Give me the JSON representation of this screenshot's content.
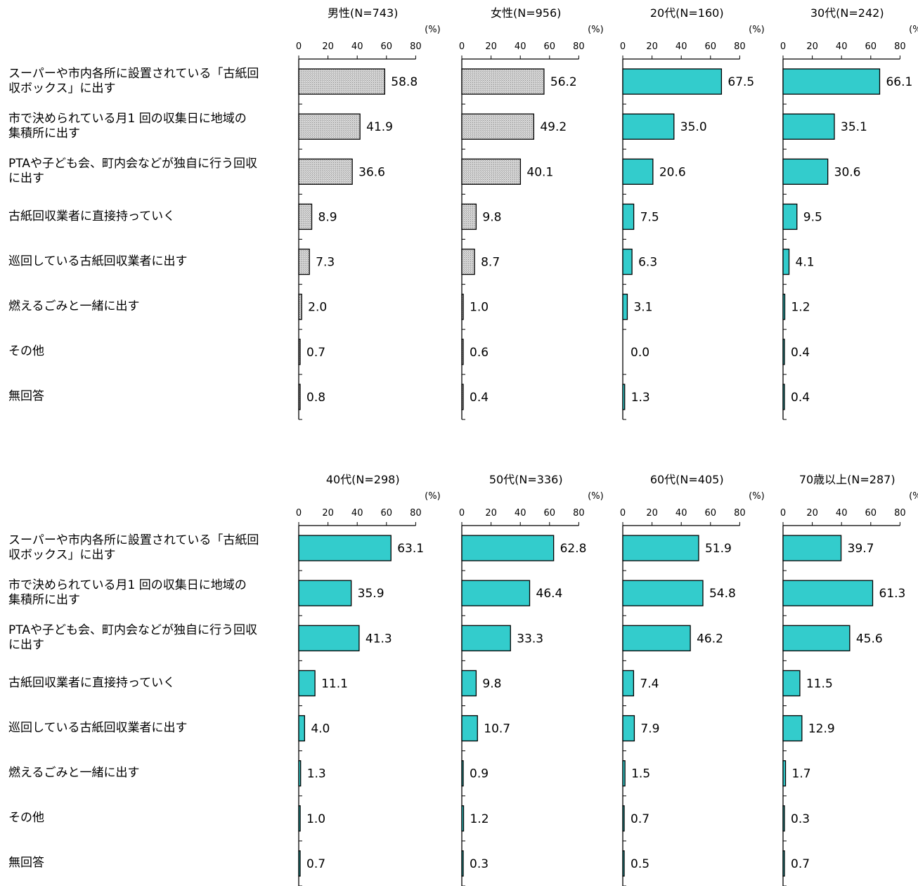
{
  "chart_data": {
    "type": "bar",
    "orientation": "horizontal",
    "unit": "(%)",
    "xlim": [
      0,
      80
    ],
    "ticks": [
      "0",
      "20",
      "40",
      "60",
      "80"
    ],
    "categories": [
      "スーパーや市内各所に設置されている「古紙回収ボックス」に出す",
      "市で決められている月1 回の収集日に地域の集積所に出す",
      "PTAや子ども会、町内会などが独自に行う回収に出す",
      "古紙回収業者に直接持っていく",
      "巡回している古紙回収業者に出す",
      "燃えるごみと一緒に出す",
      "その他",
      "無回答"
    ],
    "category_lines": [
      [
        "スーパーや市内各所に設置されている「古紙回",
        "収ボックス」に出す"
      ],
      [
        "市で決められている月1 回の収集日に地域の",
        "集積所に出す"
      ],
      [
        "PTAや子ども会、町内会などが独自に行う回収",
        "に出す"
      ],
      [
        "古紙回収業者に直接持っていく"
      ],
      [
        "巡回している古紙回収業者に出す"
      ],
      [
        "燃えるごみと一緒に出す"
      ],
      [
        "その他"
      ],
      [
        "無回答"
      ]
    ],
    "colors": {
      "gender": "#c8c8c8",
      "age": "#33cccc",
      "border": "#000000"
    },
    "panels": [
      {
        "title": "男性(N=743)",
        "style": "gender",
        "values": [
          58.8,
          41.9,
          36.6,
          8.9,
          7.3,
          2.0,
          0.7,
          0.8
        ],
        "labels": [
          "58.8",
          "41.9",
          "36.6",
          "8.9",
          "7.3",
          "2.0",
          "0.7",
          "0.8"
        ]
      },
      {
        "title": "女性(N=956)",
        "style": "gender",
        "values": [
          56.2,
          49.2,
          40.1,
          9.8,
          8.7,
          1.0,
          0.6,
          0.4
        ],
        "labels": [
          "56.2",
          "49.2",
          "40.1",
          "9.8",
          "8.7",
          "1.0",
          "0.6",
          "0.4"
        ]
      },
      {
        "title": "20代(N=160)",
        "style": "age",
        "values": [
          67.5,
          35.0,
          20.6,
          7.5,
          6.3,
          3.1,
          0.0,
          1.3
        ],
        "labels": [
          "67.5",
          "35.0",
          "20.6",
          "7.5",
          "6.3",
          "3.1",
          "0.0",
          "1.3"
        ]
      },
      {
        "title": "30代(N=242)",
        "style": "age",
        "values": [
          66.1,
          35.1,
          30.6,
          9.5,
          4.1,
          1.2,
          0.4,
          0.4
        ],
        "labels": [
          "66.1",
          "35.1",
          "30.6",
          "9.5",
          "4.1",
          "1.2",
          "0.4",
          "0.4"
        ]
      },
      {
        "title": "40代(N=298)",
        "style": "age",
        "values": [
          63.1,
          35.9,
          41.3,
          11.1,
          4.0,
          1.3,
          1.0,
          0.7
        ],
        "labels": [
          "63.1",
          "35.9",
          "41.3",
          "11.1",
          "4.0",
          "1.3",
          "1.0",
          "0.7"
        ]
      },
      {
        "title": "50代(N=336)",
        "style": "age",
        "values": [
          62.8,
          46.4,
          33.3,
          9.8,
          10.7,
          0.9,
          1.2,
          0.3
        ],
        "labels": [
          "62.8",
          "46.4",
          "33.3",
          "9.8",
          "10.7",
          "0.9",
          "1.2",
          "0.3"
        ]
      },
      {
        "title": "60代(N=405)",
        "style": "age",
        "values": [
          51.9,
          54.8,
          46.2,
          7.4,
          7.9,
          1.5,
          0.7,
          0.5
        ],
        "labels": [
          "51.9",
          "54.8",
          "46.2",
          "7.4",
          "7.9",
          "1.5",
          "0.7",
          "0.5"
        ]
      },
      {
        "title": "70歳以上(N=287)",
        "style": "age",
        "values": [
          39.7,
          61.3,
          45.6,
          11.5,
          12.9,
          1.7,
          0.3,
          0.7
        ],
        "labels": [
          "39.7",
          "61.3",
          "45.6",
          "11.5",
          "12.9",
          "1.7",
          "0.3",
          "0.7"
        ]
      }
    ]
  }
}
